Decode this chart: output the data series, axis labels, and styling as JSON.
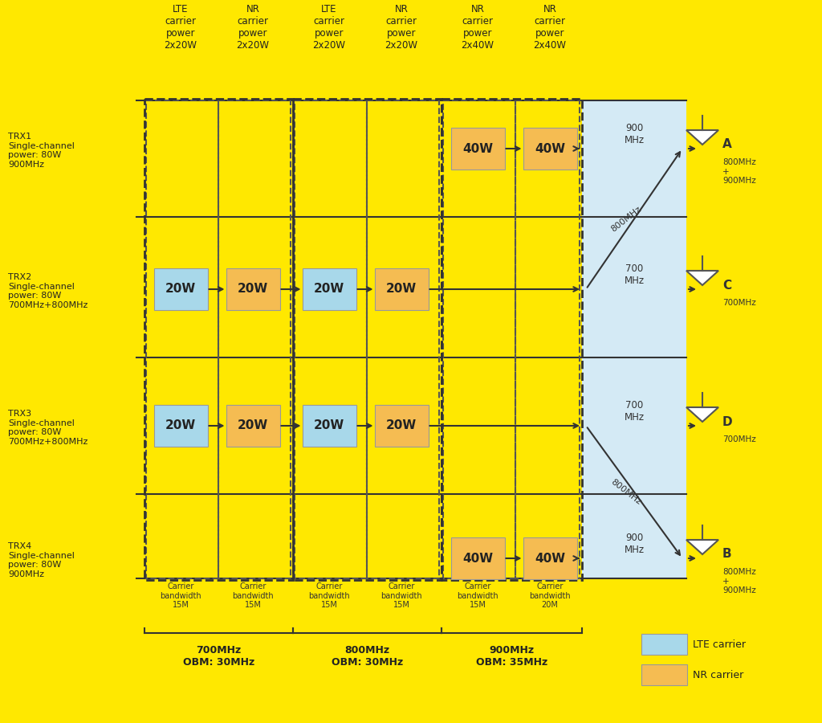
{
  "bg_color": "#FFE800",
  "fig_width": 10.24,
  "fig_height": 9.0,
  "col_headers": [
    "LTE\ncarrier\npower\n2x20W",
    "NR\ncarrier\npower\n2x20W",
    "LTE\ncarrier\npower\n2x20W",
    "NR\ncarrier\npower\n2x20W",
    "NR\ncarrier\npower\n2x40W",
    "NR\ncarrier\npower\n2x40W"
  ],
  "row_labels": [
    "TRX1\nSingle-channel\npower: 80W\n900MHz",
    "TRX2\nSingle-channel\npower: 80W\n700MHz+800MHz",
    "TRX3\nSingle-channel\npower: 80W\n700MHz+800MHz",
    "TRX4\nSingle-channel\npower: 80W\n900MHz"
  ],
  "lte_color": "#a8d8ea",
  "nr_color": "#f5bc52",
  "blue_panel_color": "#d4eaf5",
  "boxes": [
    {
      "row": 0,
      "col": 4,
      "type": "nr",
      "label": "40W"
    },
    {
      "row": 0,
      "col": 5,
      "type": "nr",
      "label": "40W"
    },
    {
      "row": 1,
      "col": 0,
      "type": "lte",
      "label": "20W"
    },
    {
      "row": 1,
      "col": 1,
      "type": "nr",
      "label": "20W"
    },
    {
      "row": 1,
      "col": 2,
      "type": "lte",
      "label": "20W"
    },
    {
      "row": 1,
      "col": 3,
      "type": "nr",
      "label": "20W"
    },
    {
      "row": 2,
      "col": 0,
      "type": "lte",
      "label": "20W"
    },
    {
      "row": 2,
      "col": 1,
      "type": "nr",
      "label": "20W"
    },
    {
      "row": 2,
      "col": 2,
      "type": "lte",
      "label": "20W"
    },
    {
      "row": 2,
      "col": 3,
      "type": "nr",
      "label": "20W"
    },
    {
      "row": 3,
      "col": 4,
      "type": "nr",
      "label": "40W"
    },
    {
      "row": 3,
      "col": 5,
      "type": "nr",
      "label": "40W"
    }
  ],
  "ant_labels": [
    "A",
    "C",
    "D",
    "B"
  ],
  "ant_freq_right": [
    "800MHz\n+\n900MHz",
    "700MHz",
    "700MHz",
    "800MHz\n+\n900MHz"
  ],
  "panel_freq_labels": [
    "900\nMHz",
    "700\nMHz",
    "700\nMHz",
    "900\nMHz"
  ],
  "bw_labels": [
    "Carrier\nbandwidth\n15M",
    "Carrier\nbandwidth\n15M",
    "Carrier\nbandwidth\n15M",
    "Carrier\nbandwidth\n15M",
    "Carrier\nbandwidth\n15M",
    "Carrier\nbandwidth\n20M"
  ],
  "freq_group_labels": [
    "700MHz\nOBM: 30MHz",
    "800MHz\nOBM: 30MHz",
    "900MHz\nOBM: 35MHz"
  ]
}
